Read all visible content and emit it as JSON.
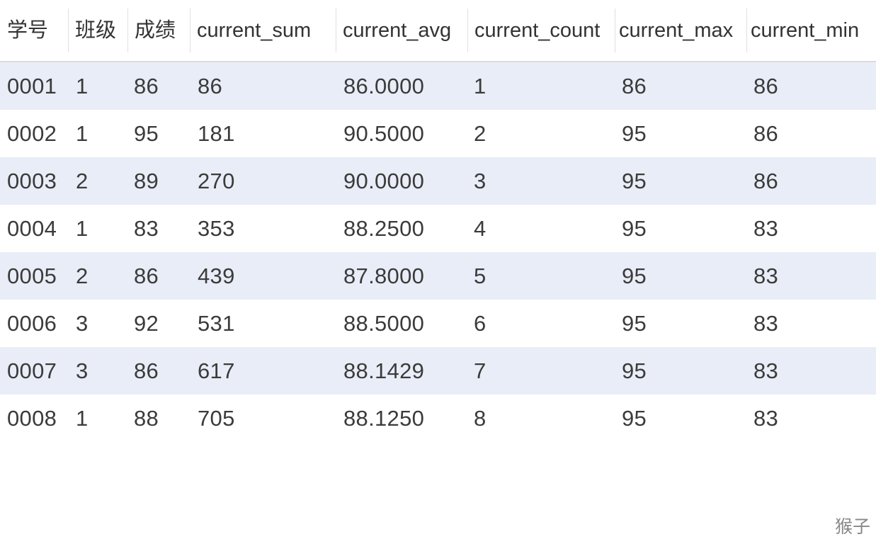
{
  "columns": [
    "学号",
    "班级",
    "成绩",
    "current_sum",
    "current_avg",
    "current_count",
    "current_max",
    "current_min"
  ],
  "rows": [
    [
      "0001",
      "1",
      "86",
      "86",
      "86.0000",
      "1",
      "86",
      "86"
    ],
    [
      "0002",
      "1",
      "95",
      "181",
      "90.5000",
      "2",
      "95",
      "86"
    ],
    [
      "0003",
      "2",
      "89",
      "270",
      "90.0000",
      "3",
      "95",
      "86"
    ],
    [
      "0004",
      "1",
      "83",
      "353",
      "88.2500",
      "4",
      "95",
      "83"
    ],
    [
      "0005",
      "2",
      "86",
      "439",
      "87.8000",
      "5",
      "95",
      "83"
    ],
    [
      "0006",
      "3",
      "92",
      "531",
      "88.5000",
      "6",
      "95",
      "83"
    ],
    [
      "0007",
      "3",
      "86",
      "617",
      "88.1429",
      "7",
      "95",
      "83"
    ],
    [
      "0008",
      "1",
      "88",
      "705",
      "88.1250",
      "8",
      "95",
      "83"
    ]
  ],
  "watermark": "猴子"
}
